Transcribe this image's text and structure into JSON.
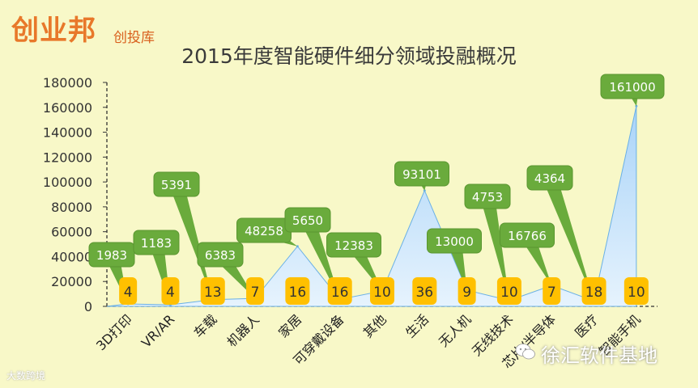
{
  "header": {
    "logo_text": "创业邦",
    "logo_sub": "创投库"
  },
  "watermark_left": "大数跨境",
  "watermark_right": "徐汇软件基地",
  "chart_data": {
    "type": "area",
    "title": "2015年度智能硬件细分领域投融概况",
    "categories": [
      "3D打印",
      "VR/AR",
      "车载",
      "机器人",
      "家居",
      "可穿戴设备",
      "其他",
      "生活",
      "无人机",
      "无线技术",
      "芯片/半导体",
      "医疗",
      "智能手机"
    ],
    "series": [
      {
        "values": [
          1983,
          1183,
          5391,
          6383,
          48258,
          5650,
          12383,
          93101,
          13000,
          4753,
          16766,
          4364,
          161000
        ]
      },
      {
        "values": [
          4,
          4,
          13,
          7,
          16,
          16,
          10,
          36,
          9,
          10,
          7,
          18,
          10
        ]
      }
    ],
    "callout_labels": [
      "1983",
      "1183",
      "5391",
      "6383",
      "48258",
      "5650",
      "12383",
      "93101",
      "13000",
      "4753",
      "16766",
      "4364",
      "161000"
    ],
    "ylim": [
      0,
      180000
    ],
    "yticks": [
      0,
      20000,
      40000,
      60000,
      80000,
      100000,
      120000,
      140000,
      160000,
      180000
    ],
    "colors": {
      "area_top": "#b7dafb",
      "area_bottom": "#e3f2fd",
      "area_line": "#6ab0e6",
      "callout": "#6aab3c",
      "badge": "#ffc000"
    }
  }
}
